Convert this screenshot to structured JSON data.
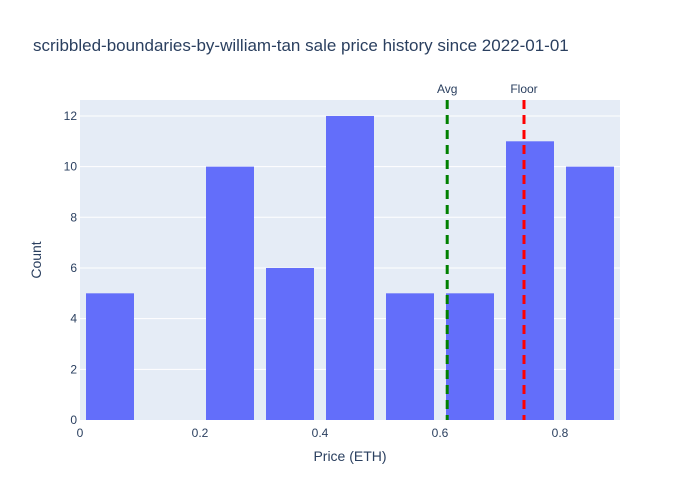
{
  "chart_data": {
    "type": "bar",
    "title": "scribbled-boundaries-by-william-tan sale price history since 2022-01-01",
    "xlabel": "Price (ETH)",
    "ylabel": "Count",
    "bin_centers": [
      0.05,
      0.25,
      0.35,
      0.45,
      0.55,
      0.65,
      0.75,
      0.85
    ],
    "bin_width": 0.1,
    "values": [
      5,
      10,
      6,
      12,
      5,
      5,
      11,
      10
    ],
    "xlim": [
      0,
      0.9
    ],
    "ylim": [
      0,
      12.63
    ],
    "x_ticks": [
      0,
      0.2,
      0.4,
      0.6,
      0.8
    ],
    "x_tick_labels": [
      "0",
      "0.2",
      "0.4",
      "0.6",
      "0.8"
    ],
    "y_ticks": [
      0,
      2,
      4,
      6,
      8,
      10,
      12
    ],
    "y_tick_labels": [
      "0",
      "2",
      "4",
      "6",
      "8",
      "10",
      "12"
    ],
    "grid": true,
    "colors": {
      "bar": "#636efa",
      "plot_bg": "#e5ecf6",
      "grid": "#ffffff",
      "text": "#2a3f5f",
      "avg_line": "#008000",
      "floor_line": "#ff0000"
    },
    "annotations": [
      {
        "label": "Avg",
        "x": 0.612,
        "color": "#008000",
        "style": "dashed"
      },
      {
        "label": "Floor",
        "x": 0.74,
        "color": "#ff0000",
        "style": "dashed"
      }
    ]
  }
}
